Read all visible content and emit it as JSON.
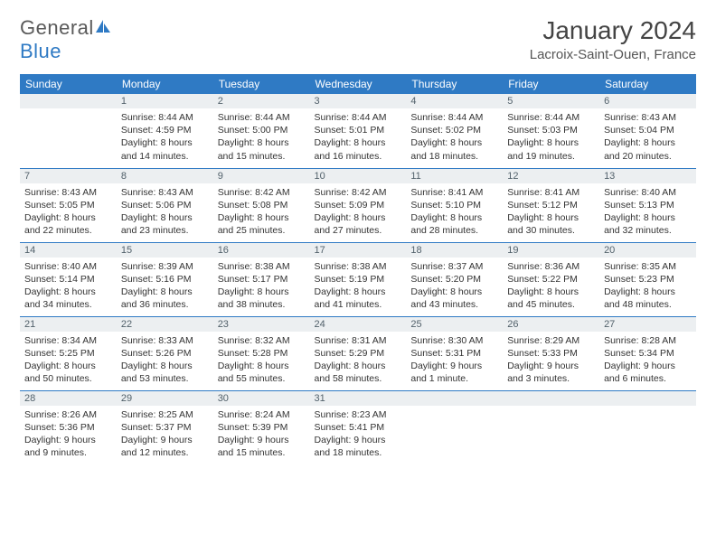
{
  "brand": {
    "part1": "General",
    "part2": "Blue"
  },
  "title": "January 2024",
  "location": "Lacroix-Saint-Ouen, France",
  "colors": {
    "header_bg": "#2f7ac4",
    "daynum_bg": "#eceff1",
    "text": "#333333"
  },
  "day_headers": [
    "Sunday",
    "Monday",
    "Tuesday",
    "Wednesday",
    "Thursday",
    "Friday",
    "Saturday"
  ],
  "weeks": [
    [
      {
        "n": "",
        "sr": "",
        "ss": "",
        "dl": ""
      },
      {
        "n": "1",
        "sr": "Sunrise: 8:44 AM",
        "ss": "Sunset: 4:59 PM",
        "dl": "Daylight: 8 hours and 14 minutes."
      },
      {
        "n": "2",
        "sr": "Sunrise: 8:44 AM",
        "ss": "Sunset: 5:00 PM",
        "dl": "Daylight: 8 hours and 15 minutes."
      },
      {
        "n": "3",
        "sr": "Sunrise: 8:44 AM",
        "ss": "Sunset: 5:01 PM",
        "dl": "Daylight: 8 hours and 16 minutes."
      },
      {
        "n": "4",
        "sr": "Sunrise: 8:44 AM",
        "ss": "Sunset: 5:02 PM",
        "dl": "Daylight: 8 hours and 18 minutes."
      },
      {
        "n": "5",
        "sr": "Sunrise: 8:44 AM",
        "ss": "Sunset: 5:03 PM",
        "dl": "Daylight: 8 hours and 19 minutes."
      },
      {
        "n": "6",
        "sr": "Sunrise: 8:43 AM",
        "ss": "Sunset: 5:04 PM",
        "dl": "Daylight: 8 hours and 20 minutes."
      }
    ],
    [
      {
        "n": "7",
        "sr": "Sunrise: 8:43 AM",
        "ss": "Sunset: 5:05 PM",
        "dl": "Daylight: 8 hours and 22 minutes."
      },
      {
        "n": "8",
        "sr": "Sunrise: 8:43 AM",
        "ss": "Sunset: 5:06 PM",
        "dl": "Daylight: 8 hours and 23 minutes."
      },
      {
        "n": "9",
        "sr": "Sunrise: 8:42 AM",
        "ss": "Sunset: 5:08 PM",
        "dl": "Daylight: 8 hours and 25 minutes."
      },
      {
        "n": "10",
        "sr": "Sunrise: 8:42 AM",
        "ss": "Sunset: 5:09 PM",
        "dl": "Daylight: 8 hours and 27 minutes."
      },
      {
        "n": "11",
        "sr": "Sunrise: 8:41 AM",
        "ss": "Sunset: 5:10 PM",
        "dl": "Daylight: 8 hours and 28 minutes."
      },
      {
        "n": "12",
        "sr": "Sunrise: 8:41 AM",
        "ss": "Sunset: 5:12 PM",
        "dl": "Daylight: 8 hours and 30 minutes."
      },
      {
        "n": "13",
        "sr": "Sunrise: 8:40 AM",
        "ss": "Sunset: 5:13 PM",
        "dl": "Daylight: 8 hours and 32 minutes."
      }
    ],
    [
      {
        "n": "14",
        "sr": "Sunrise: 8:40 AM",
        "ss": "Sunset: 5:14 PM",
        "dl": "Daylight: 8 hours and 34 minutes."
      },
      {
        "n": "15",
        "sr": "Sunrise: 8:39 AM",
        "ss": "Sunset: 5:16 PM",
        "dl": "Daylight: 8 hours and 36 minutes."
      },
      {
        "n": "16",
        "sr": "Sunrise: 8:38 AM",
        "ss": "Sunset: 5:17 PM",
        "dl": "Daylight: 8 hours and 38 minutes."
      },
      {
        "n": "17",
        "sr": "Sunrise: 8:38 AM",
        "ss": "Sunset: 5:19 PM",
        "dl": "Daylight: 8 hours and 41 minutes."
      },
      {
        "n": "18",
        "sr": "Sunrise: 8:37 AM",
        "ss": "Sunset: 5:20 PM",
        "dl": "Daylight: 8 hours and 43 minutes."
      },
      {
        "n": "19",
        "sr": "Sunrise: 8:36 AM",
        "ss": "Sunset: 5:22 PM",
        "dl": "Daylight: 8 hours and 45 minutes."
      },
      {
        "n": "20",
        "sr": "Sunrise: 8:35 AM",
        "ss": "Sunset: 5:23 PM",
        "dl": "Daylight: 8 hours and 48 minutes."
      }
    ],
    [
      {
        "n": "21",
        "sr": "Sunrise: 8:34 AM",
        "ss": "Sunset: 5:25 PM",
        "dl": "Daylight: 8 hours and 50 minutes."
      },
      {
        "n": "22",
        "sr": "Sunrise: 8:33 AM",
        "ss": "Sunset: 5:26 PM",
        "dl": "Daylight: 8 hours and 53 minutes."
      },
      {
        "n": "23",
        "sr": "Sunrise: 8:32 AM",
        "ss": "Sunset: 5:28 PM",
        "dl": "Daylight: 8 hours and 55 minutes."
      },
      {
        "n": "24",
        "sr": "Sunrise: 8:31 AM",
        "ss": "Sunset: 5:29 PM",
        "dl": "Daylight: 8 hours and 58 minutes."
      },
      {
        "n": "25",
        "sr": "Sunrise: 8:30 AM",
        "ss": "Sunset: 5:31 PM",
        "dl": "Daylight: 9 hours and 1 minute."
      },
      {
        "n": "26",
        "sr": "Sunrise: 8:29 AM",
        "ss": "Sunset: 5:33 PM",
        "dl": "Daylight: 9 hours and 3 minutes."
      },
      {
        "n": "27",
        "sr": "Sunrise: 8:28 AM",
        "ss": "Sunset: 5:34 PM",
        "dl": "Daylight: 9 hours and 6 minutes."
      }
    ],
    [
      {
        "n": "28",
        "sr": "Sunrise: 8:26 AM",
        "ss": "Sunset: 5:36 PM",
        "dl": "Daylight: 9 hours and 9 minutes."
      },
      {
        "n": "29",
        "sr": "Sunrise: 8:25 AM",
        "ss": "Sunset: 5:37 PM",
        "dl": "Daylight: 9 hours and 12 minutes."
      },
      {
        "n": "30",
        "sr": "Sunrise: 8:24 AM",
        "ss": "Sunset: 5:39 PM",
        "dl": "Daylight: 9 hours and 15 minutes."
      },
      {
        "n": "31",
        "sr": "Sunrise: 8:23 AM",
        "ss": "Sunset: 5:41 PM",
        "dl": "Daylight: 9 hours and 18 minutes."
      },
      {
        "n": "",
        "sr": "",
        "ss": "",
        "dl": ""
      },
      {
        "n": "",
        "sr": "",
        "ss": "",
        "dl": ""
      },
      {
        "n": "",
        "sr": "",
        "ss": "",
        "dl": ""
      }
    ]
  ]
}
